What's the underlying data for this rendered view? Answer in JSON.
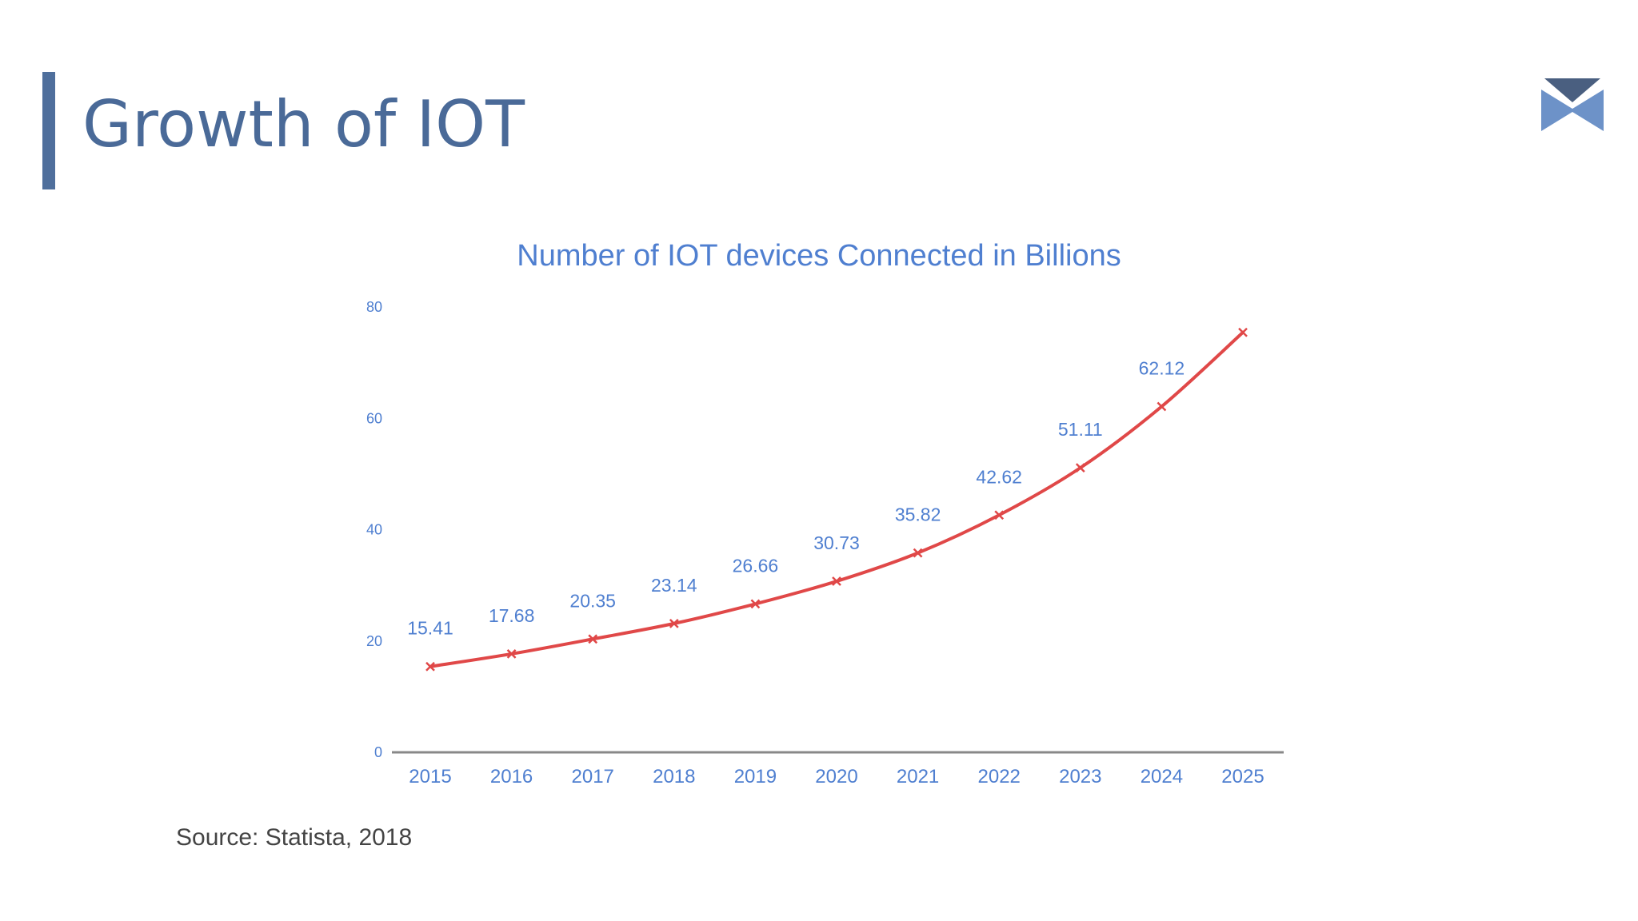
{
  "slide": {
    "title": "Growth of IOT",
    "source": "Source: Statista, 2018",
    "accent_color": "#4f6f9c",
    "logo_icon": "chevron-logo-icon"
  },
  "chart_data": {
    "type": "line",
    "title": "Number of IOT devices Connected in Billions",
    "xlabel": "",
    "ylabel": "",
    "categories": [
      "2015",
      "2016",
      "2017",
      "2018",
      "2019",
      "2020",
      "2021",
      "2022",
      "2023",
      "2024",
      "2025"
    ],
    "series": [
      {
        "values": [
          15.41,
          17.68,
          20.35,
          23.14,
          26.66,
          30.73,
          35.82,
          42.62,
          51.11,
          62.12,
          75.44
        ],
        "data_labels": [
          "15.41",
          "17.68",
          "20.35",
          "23.14",
          "26.66",
          "30.73",
          "35.82",
          "42.62",
          "51.11",
          "62.12",
          ""
        ],
        "color": "#e04848",
        "marker": "x"
      }
    ],
    "ylim": [
      0,
      80
    ],
    "yticks": [
      0,
      20,
      40,
      60,
      80
    ],
    "ytick_labels": [
      "0",
      "20",
      "40",
      "60",
      "80"
    ],
    "grid": false,
    "legend": "none",
    "title_color": "#4f7fd0",
    "label_color": "#4f7fd0",
    "axis_color": "#888888"
  }
}
